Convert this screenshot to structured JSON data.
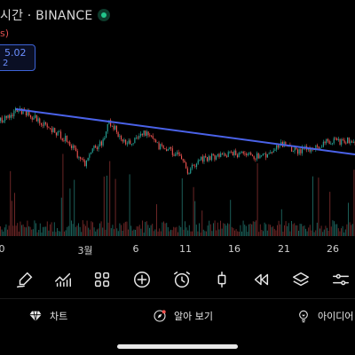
{
  "header": {
    "title": "시간 · BINANCE",
    "sub_text": "s)",
    "price_line_1": "5.02",
    "price_line_2": "2"
  },
  "chart_data": {
    "type": "candlestick",
    "x_ticks": [
      "0",
      "3월",
      "6",
      "11",
      "16",
      "21",
      "26"
    ],
    "trendline_color": "#4a62e8",
    "up_color": "#26a69a",
    "down_color": "#ef5350"
  },
  "toolbar": {
    "tools": [
      "brush-icon",
      "indicators-icon",
      "templates-icon",
      "add-icon",
      "alarm-icon",
      "candle-style-icon",
      "replay-icon",
      "layers-icon",
      "settings-icon"
    ]
  },
  "bottom_nav": {
    "chart_label": "차트",
    "explore_label": "알아 보기",
    "ideas_label": "아이디어"
  }
}
